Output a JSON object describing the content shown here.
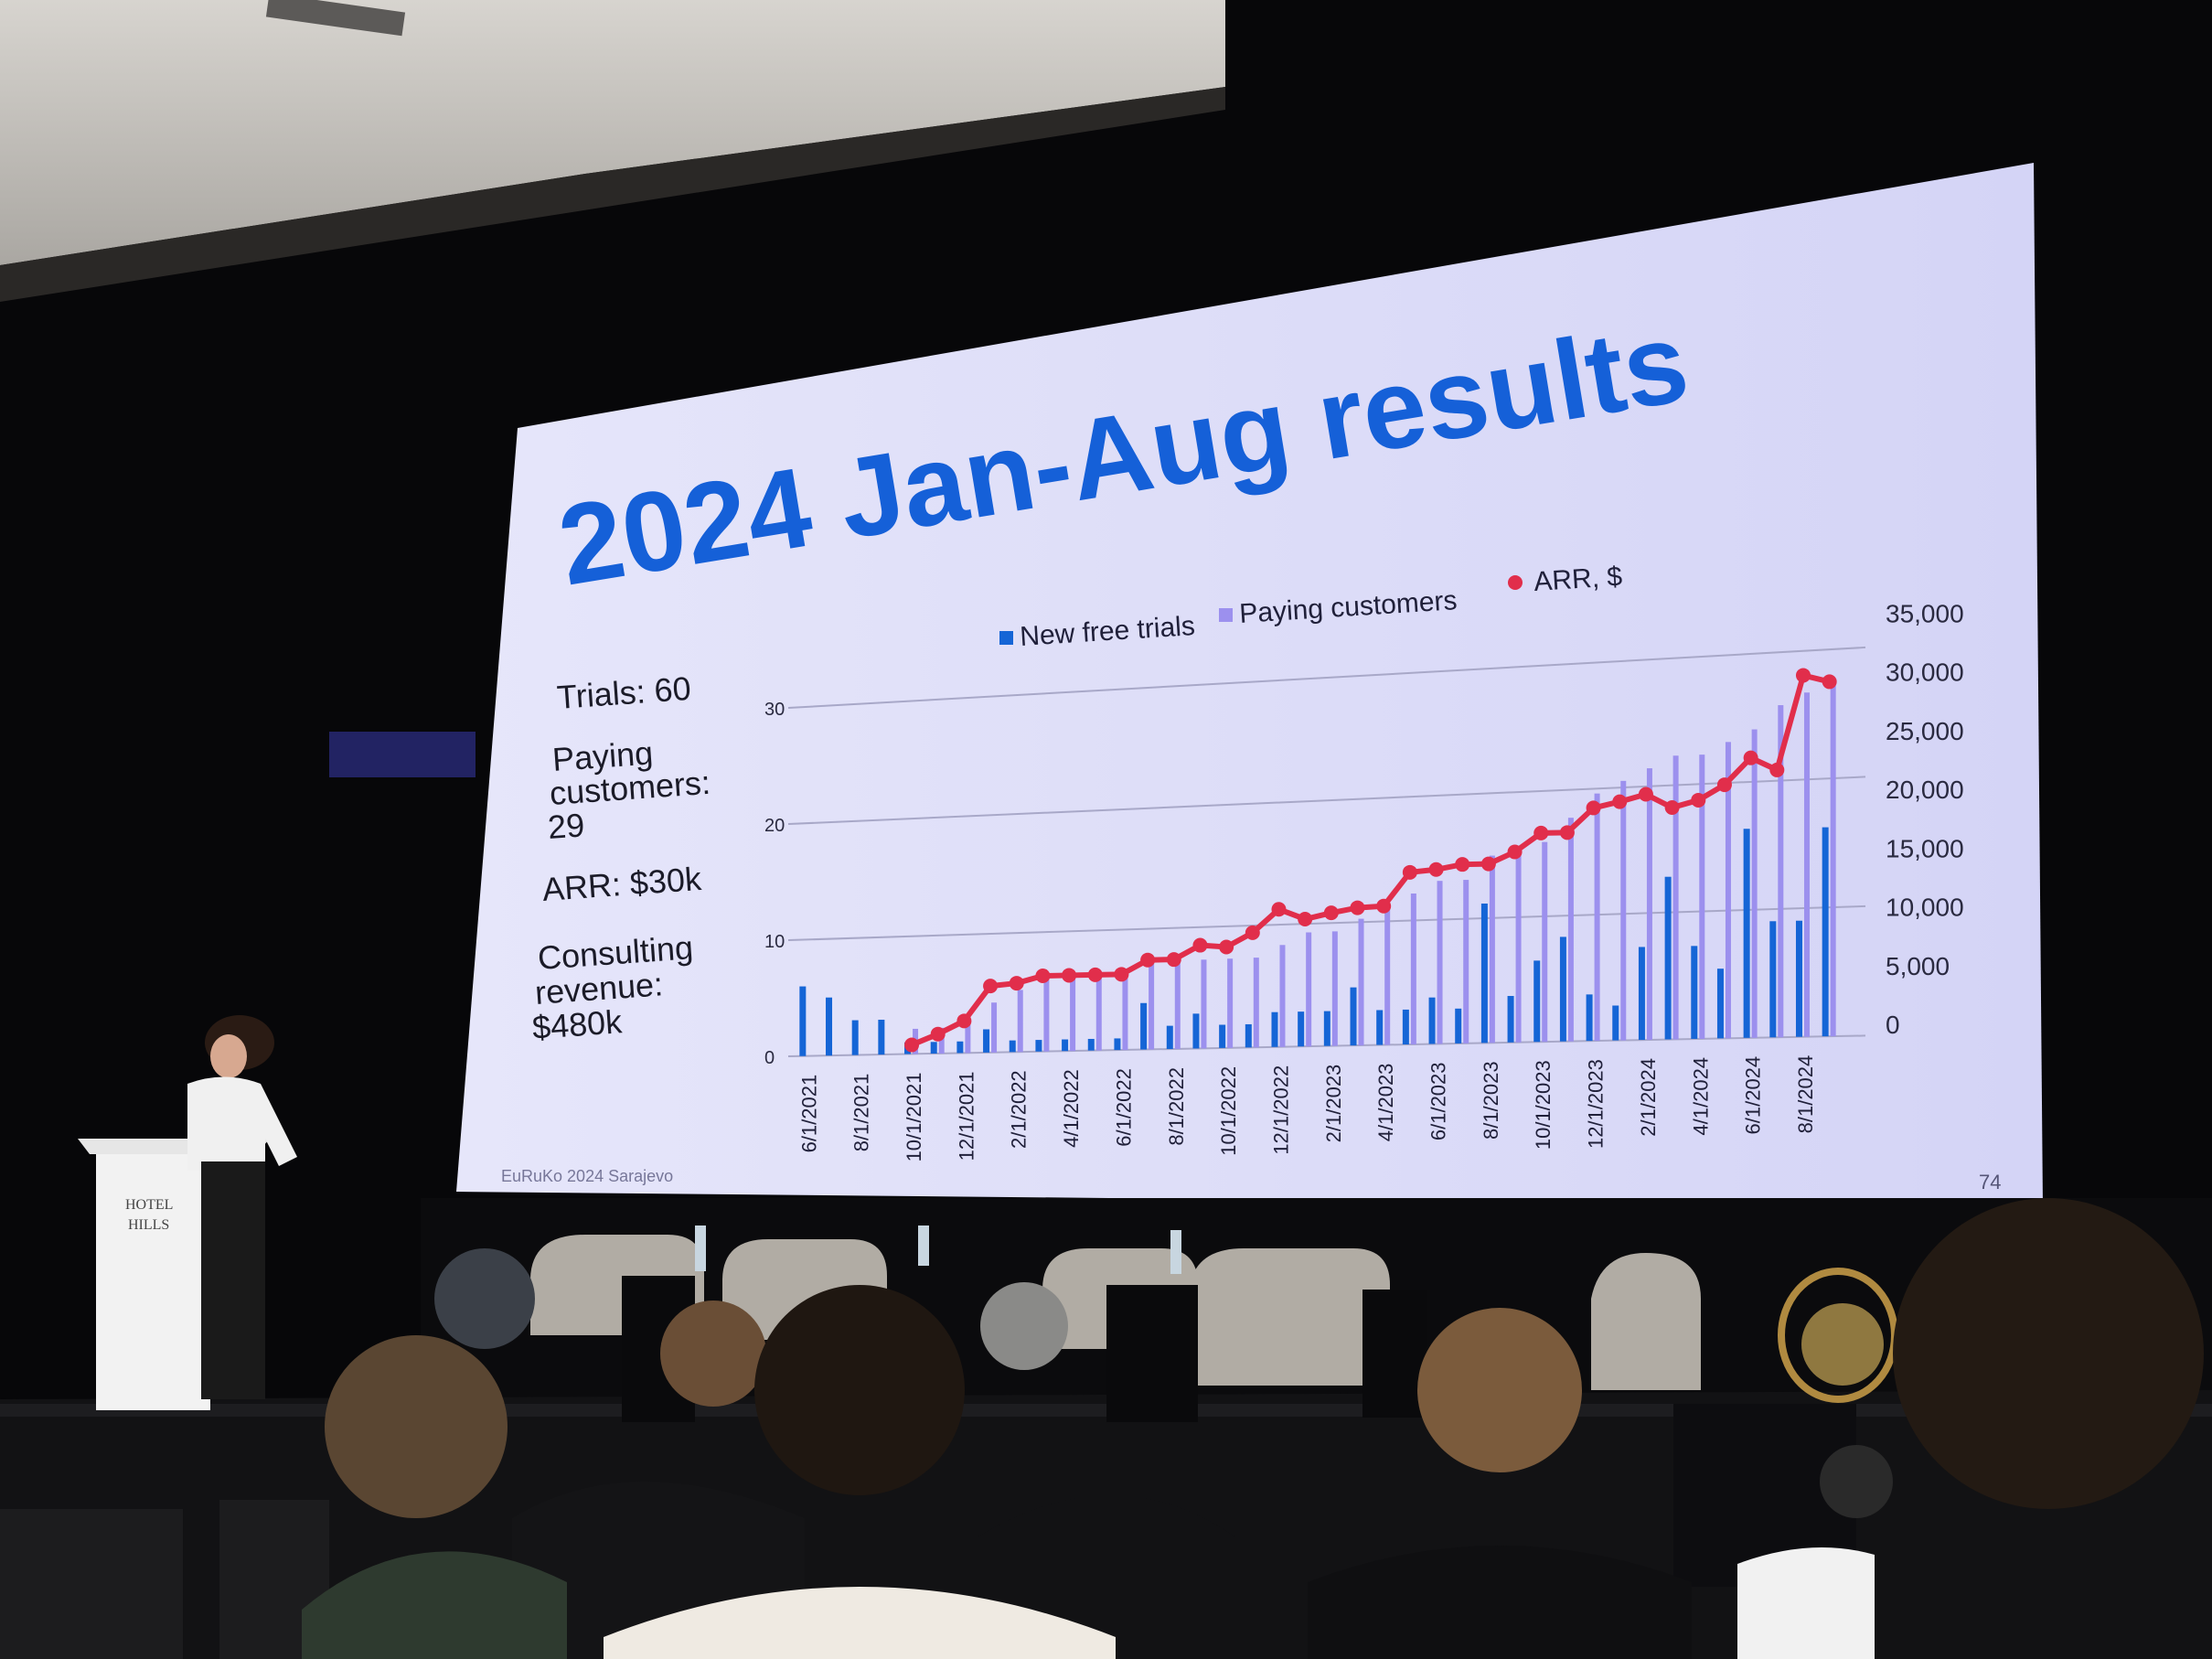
{
  "slide": {
    "title": "2024 Jan-Aug results",
    "stats": {
      "trials": "Trials: 60",
      "paying_1": "Paying",
      "paying_2": "customers:",
      "paying_3": "29",
      "arr": "ARR: $30k",
      "consulting_1": "Consulting",
      "consulting_2": "revenue:",
      "consulting_3": "$480k"
    },
    "footer": "EuRuKo 2024 Sarajevo",
    "page_number": "74"
  },
  "podium": {
    "line1": "HOTEL",
    "line2": "HILLS"
  },
  "colors": {
    "screen": "#dcdcf8",
    "title": "#1560d8",
    "trials_bar": "#1565d6",
    "customers_bar": "#9c90ee",
    "arr_line": "#e12e4b"
  },
  "chart_data": {
    "type": "bar",
    "legend_position": "top",
    "grid": true,
    "series": [
      {
        "name": "New free trials",
        "axis": "left",
        "values": [
          6,
          5,
          3,
          3,
          1,
          1,
          1,
          2,
          1,
          1,
          1,
          1,
          1,
          4,
          2,
          3,
          2,
          2,
          3,
          3,
          3,
          5,
          3,
          3,
          4,
          3,
          12,
          4,
          7,
          9,
          4,
          3,
          8,
          14,
          8,
          6,
          18,
          10,
          10,
          18
        ]
      },
      {
        "name": "Paying customers",
        "axis": "left",
        "values": [
          0,
          0,
          0,
          0,
          2,
          2,
          3,
          4,
          5,
          6,
          6,
          6,
          6,
          7,
          7,
          7,
          7,
          7,
          8,
          9,
          9,
          10,
          11,
          12,
          13,
          13,
          15,
          15,
          16,
          18,
          20,
          21,
          22,
          23,
          23,
          24,
          25,
          27,
          28,
          29
        ]
      },
      {
        "name": "ARR, $",
        "axis": "right",
        "values": [
          0,
          900,
          2000,
          5000,
          5200,
          5800,
          5800,
          5800,
          5800,
          7000,
          7000,
          8200,
          8000,
          9200,
          11200,
          10300,
          10800,
          11200,
          11300,
          14200,
          14400,
          14800,
          14800,
          15800,
          17400,
          17400,
          19500,
          20000,
          20600,
          19400,
          20000,
          21300,
          23600,
          22500,
          30700,
          30100
        ]
      }
    ],
    "x_tick_labels": [
      "6/1/2021",
      "8/1/2021",
      "10/1/2021",
      "12/1/2021",
      "2/1/2022",
      "4/1/2022",
      "6/1/2022",
      "8/1/2022",
      "10/1/2022",
      "12/1/2022",
      "2/1/2023",
      "4/1/2023",
      "6/1/2023",
      "8/1/2023",
      "10/1/2023",
      "12/1/2023",
      "2/1/2024",
      "4/1/2024",
      "6/1/2024",
      "8/1/2024"
    ],
    "y_left_ticks": [
      "0",
      "10",
      "20",
      "30"
    ],
    "y_right_ticks": [
      "0",
      "5,000",
      "10,000",
      "15,000",
      "20,000",
      "25,000",
      "30,000",
      "35,000"
    ],
    "ylim_left": [
      0,
      35
    ],
    "ylim_right": [
      0,
      35000
    ]
  }
}
